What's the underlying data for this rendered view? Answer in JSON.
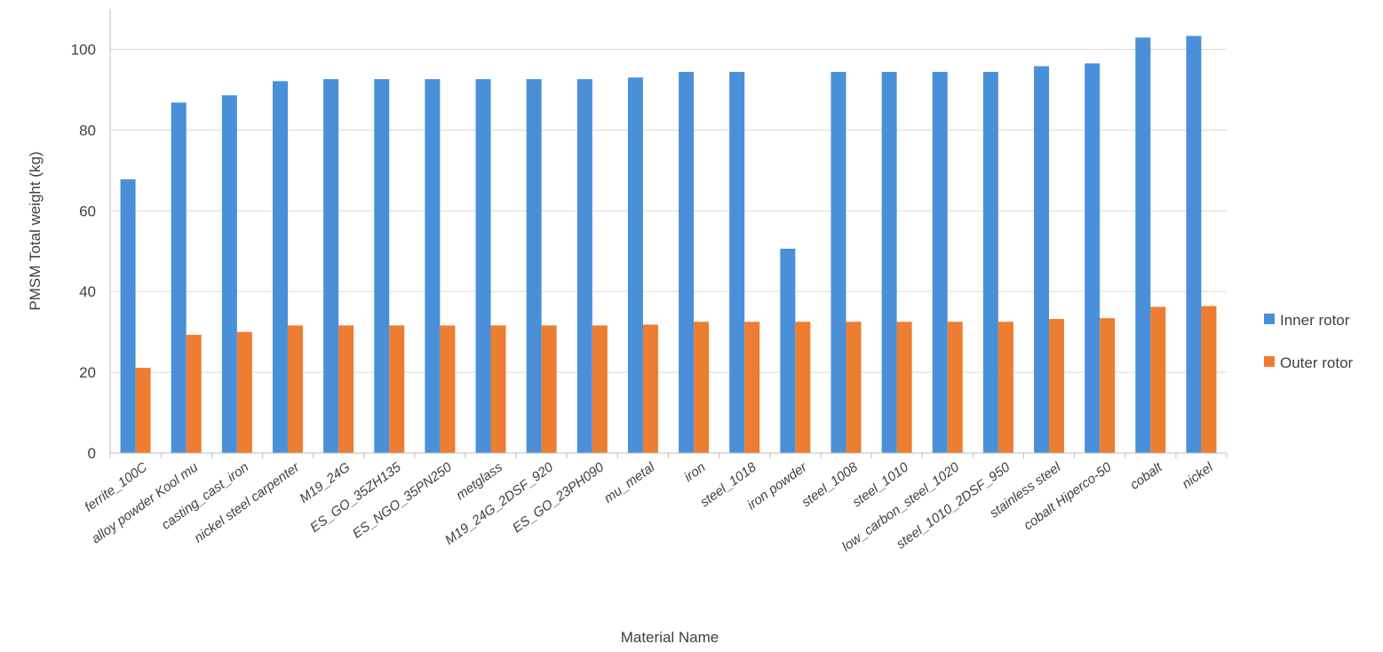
{
  "chart_data": {
    "type": "bar",
    "title": "",
    "xlabel": "Material Name",
    "ylabel": "PMSM Total weight (kg)",
    "ylim": [
      0,
      110
    ],
    "yticks": [
      0,
      20,
      40,
      60,
      80,
      100
    ],
    "grid": true,
    "legend_position": "right",
    "categories": [
      "ferrite_100C",
      "alloy powder Kool mu",
      "casting_cast_iron",
      "nickel steel carpenter",
      "M19_24G",
      "ES_GO_35ZH135",
      "ES_NGO_35PN250",
      "metglass",
      "M19_24G_2DSF_920",
      "ES_GO_23PH090",
      "mu_metal",
      "iron",
      "steel_1018",
      "iron powder",
      "steel_1008",
      "steel_1010",
      "low_carbon_steel_1020",
      "steel_1010_2DSF_950",
      "stainless steel",
      "cobalt Hiperco-50",
      "cobalt",
      "nickel"
    ],
    "series": [
      {
        "name": "Inner rotor",
        "color": "#4A90D9",
        "values": [
          67.8,
          86.8,
          88.6,
          92.1,
          92.6,
          92.6,
          92.6,
          92.6,
          92.6,
          92.6,
          93.0,
          94.4,
          94.4,
          50.6,
          94.4,
          94.4,
          94.4,
          94.4,
          95.8,
          96.5,
          102.9,
          103.3
        ]
      },
      {
        "name": "Outer rotor",
        "color": "#ED7D31",
        "values": [
          21.1,
          29.3,
          30.0,
          31.6,
          31.6,
          31.6,
          31.6,
          31.6,
          31.6,
          31.6,
          31.8,
          32.5,
          32.5,
          32.5,
          32.5,
          32.5,
          32.5,
          32.5,
          33.2,
          33.4,
          36.2,
          36.4
        ]
      }
    ]
  },
  "colors": {
    "grid": "#d9d9d9",
    "axis": "#bfbfbf",
    "text": "#404040"
  }
}
